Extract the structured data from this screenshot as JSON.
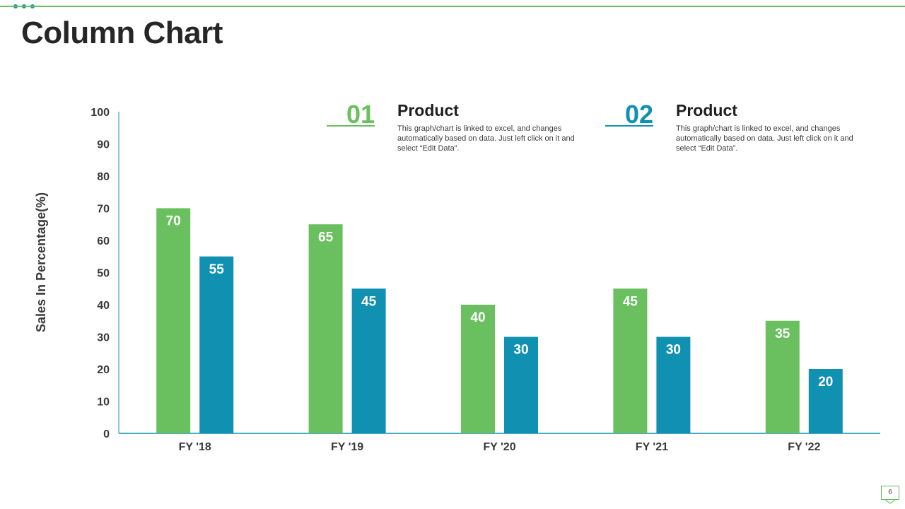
{
  "slide": {
    "title": "Column Chart",
    "page_number": "6"
  },
  "colors": {
    "green": "#6abf5f",
    "blue": "#1191b1",
    "axis": "#1191b1",
    "text": "#262626"
  },
  "legend": [
    {
      "number": "01",
      "heading": "Product",
      "description": "This graph/chart is linked to excel, and changes automatically based on data. Just left click on it and select “Edit Data”.",
      "color": "#6abf5f"
    },
    {
      "number": "02",
      "heading": "Product",
      "description": "This graph/chart is linked to excel, and changes automatically based on data. Just left click on it and select “Edit Data”.",
      "color": "#1191b1"
    }
  ],
  "chart_data": {
    "type": "bar",
    "title": "",
    "xlabel": "",
    "ylabel": "Sales In Percentage(%)",
    "ylim": [
      0,
      100
    ],
    "yticks": [
      0,
      10,
      20,
      30,
      40,
      50,
      60,
      70,
      80,
      90,
      100
    ],
    "grid": false,
    "categories": [
      "FY '18",
      "FY '19",
      "FY '20",
      "FY '21",
      "FY '22"
    ],
    "series": [
      {
        "name": "Product 01",
        "color": "#6abf5f",
        "values": [
          70,
          65,
          40,
          45,
          35
        ]
      },
      {
        "name": "Product 02",
        "color": "#1191b1",
        "values": [
          55,
          45,
          30,
          30,
          20
        ]
      }
    ]
  }
}
